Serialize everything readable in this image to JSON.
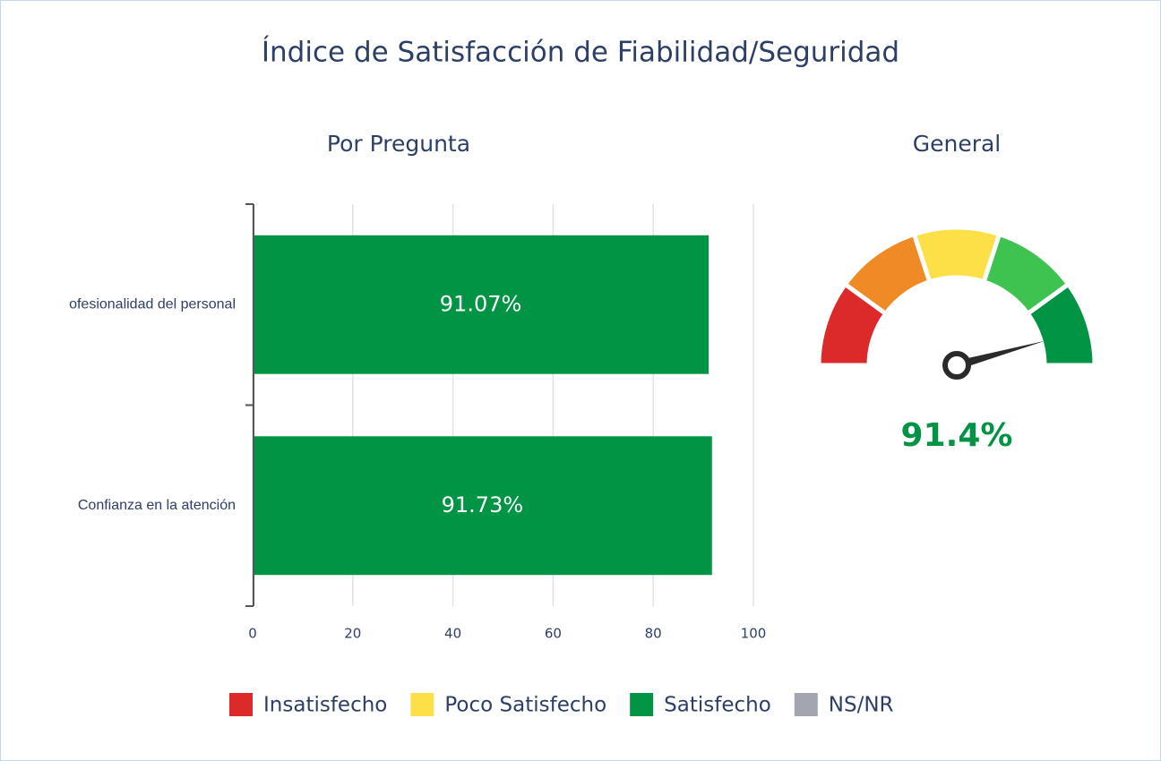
{
  "title": "Índice de Satisfacción de Fiabilidad/Seguridad",
  "chart_data": [
    {
      "type": "bar",
      "orientation": "horizontal",
      "title": "Por Pregunta",
      "categories": [
        "ofesionalidad del personal",
        "Confianza en la atención"
      ],
      "values": [
        91.07,
        91.73
      ],
      "value_labels": [
        "91.07%",
        "91.73%"
      ],
      "color": "#009444",
      "xlim": [
        0,
        100
      ],
      "xticks": [
        0,
        20,
        40,
        60,
        80,
        100
      ],
      "grid": true
    },
    {
      "type": "gauge",
      "title": "General",
      "value": 91.4,
      "value_label": "91.4%",
      "range": [
        0,
        100
      ],
      "value_color": "#009444",
      "bands": [
        {
          "from": 0,
          "to": 20,
          "color": "#dc2a2a"
        },
        {
          "from": 20,
          "to": 40,
          "color": "#f08a24"
        },
        {
          "from": 40,
          "to": 60,
          "color": "#fde047"
        },
        {
          "from": 60,
          "to": 80,
          "color": "#3fc350"
        },
        {
          "from": 80,
          "to": 100,
          "color": "#009444"
        }
      ]
    }
  ],
  "legend": [
    {
      "name": "Insatisfecho",
      "color": "#dc2a2a"
    },
    {
      "name": "Poco Satisfecho",
      "color": "#fde047"
    },
    {
      "name": "Satisfecho",
      "color": "#009444"
    },
    {
      "name": "NS/NR",
      "color": "#a3a6b0"
    }
  ]
}
